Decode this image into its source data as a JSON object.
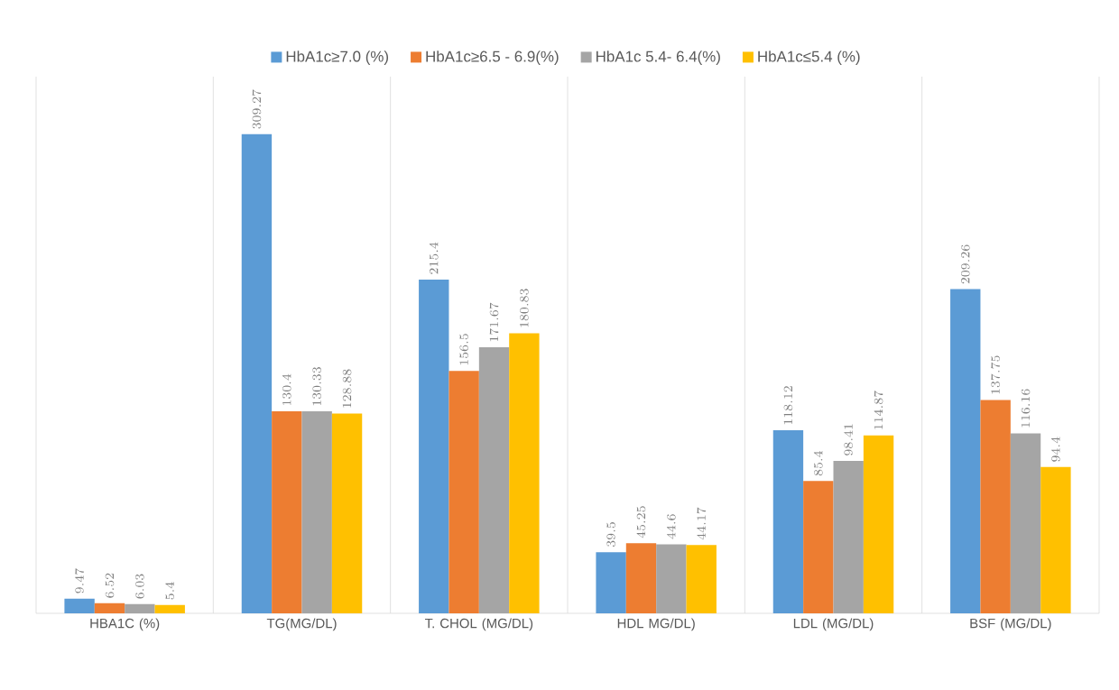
{
  "chart_data": {
    "type": "bar",
    "categories": [
      "HBA1C (%)",
      "TG(MG/DL)",
      "T. CHOL (MG/DL)",
      "HDL MG/DL)",
      "LDL (MG/DL)",
      "BSF (MG/DL)"
    ],
    "series": [
      {
        "name": "HbA1c≥7.0 (%)",
        "color": "#5b9bd5",
        "values": [
          9.47,
          309.27,
          215.4,
          39.5,
          118.12,
          209.26
        ]
      },
      {
        "name": "HbA1c≥6.5 - 6.9(%)",
        "color": "#ed7d31",
        "values": [
          6.52,
          130.4,
          156.5,
          45.25,
          85.4,
          137.75
        ]
      },
      {
        "name": "HbA1c 5.4- 6.4(%)",
        "color": "#a5a5a5",
        "values": [
          6.03,
          130.33,
          171.67,
          44.6,
          98.41,
          116.16
        ]
      },
      {
        "name": "HbA1c≤5.4 (%)",
        "color": "#ffc000",
        "values": [
          5.4,
          128.88,
          180.83,
          44.17,
          114.87,
          94.4
        ]
      }
    ],
    "data_labels": true,
    "grid": "x",
    "legend": "top"
  }
}
